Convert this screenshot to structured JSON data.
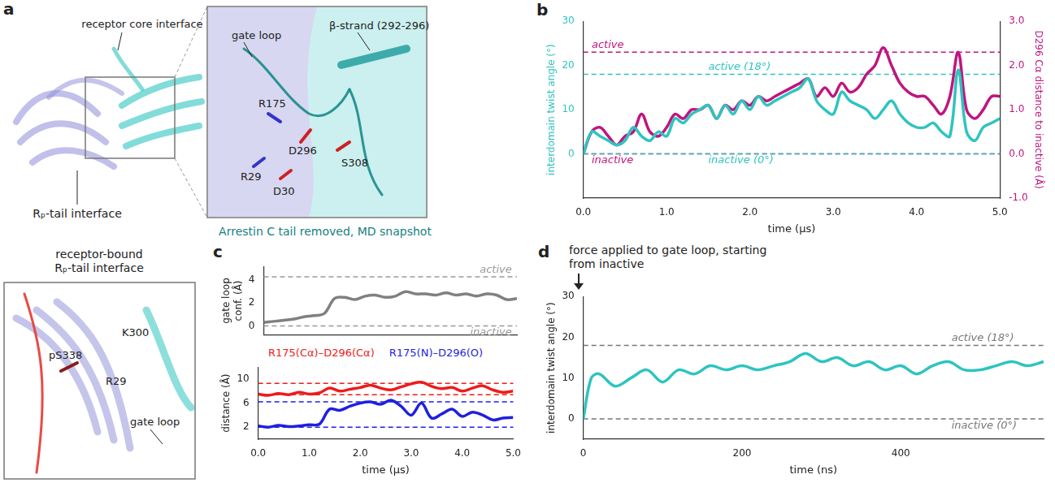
{
  "diagrams": {
    "a": {
      "letter": "a",
      "overview_labels": [
        "receptor core interface",
        "Rₚ-tail interface"
      ],
      "zoom_labels": [
        "gate loop",
        "β-strand (292-296)",
        "R175",
        "D296",
        "S308",
        "R29",
        "D30"
      ],
      "caption": "Arrestin C tail removed, MD snapshot"
    },
    "bound": {
      "title": "receptor-bound Rₚ-tail interface",
      "labels": [
        "pS338",
        "K300",
        "R29",
        "gate loop"
      ]
    }
  },
  "chart_data": [
    {
      "letter": "b",
      "type": "line",
      "grid": false,
      "xlabel": "time (μs)",
      "ylabel": "interdomain twist angle (°)",
      "y2label": "D296 Cα distance to inactive (Å)",
      "xlim": [
        0,
        5
      ],
      "xticks": [
        {
          "value": 0,
          "label": "0.0"
        },
        {
          "value": 1,
          "label": "1.0"
        },
        {
          "value": 2,
          "label": "2.0"
        },
        {
          "value": 3,
          "label": "3.0"
        },
        {
          "value": 4,
          "label": "4.0"
        },
        {
          "value": 5,
          "label": "5.0"
        }
      ],
      "ylim": [
        -10,
        30
      ],
      "yticks": [
        0,
        10,
        20,
        30
      ],
      "y2lim": [
        -1,
        3
      ],
      "y2ticks": [
        {
          "value": -1,
          "label": "-1.0"
        },
        {
          "value": 0,
          "label": "0.0"
        },
        {
          "value": 1,
          "label": "1.0"
        },
        {
          "value": 2,
          "label": "2.0"
        },
        {
          "value": 3,
          "label": "3.0"
        }
      ],
      "x": [
        0,
        0.1,
        0.2,
        0.3,
        0.4,
        0.5,
        0.6,
        0.7,
        0.8,
        0.9,
        1,
        1.1,
        1.2,
        1.3,
        1.4,
        1.5,
        1.6,
        1.7,
        1.8,
        1.9,
        2,
        2.1,
        2.2,
        2.3,
        2.4,
        2.5,
        2.6,
        2.7,
        2.8,
        2.9,
        3,
        3.1,
        3.2,
        3.3,
        3.4,
        3.5,
        3.6,
        3.7,
        3.8,
        3.9,
        4,
        4.1,
        4.2,
        4.3,
        4.4,
        4.5,
        4.6,
        4.7,
        4.8,
        4.9,
        5
      ],
      "series": [
        {
          "color": "#2ec4bf",
          "values": [
            0,
            5,
            4,
            3,
            2,
            3,
            6,
            4,
            3,
            5,
            4,
            8,
            7,
            9,
            10,
            11,
            8,
            11,
            9,
            12,
            10,
            13,
            11,
            12,
            13,
            14,
            15,
            17,
            12,
            10,
            9,
            14,
            12,
            11,
            10,
            8,
            10,
            12,
            9,
            7,
            6,
            6,
            7,
            5,
            4,
            19,
            5,
            3,
            6,
            7,
            8
          ]
        },
        {
          "color": "#c0157f",
          "axis": "y2",
          "values": [
            0,
            0.5,
            0.6,
            0.4,
            0.2,
            0.4,
            0.5,
            0.9,
            0.5,
            0.4,
            0.6,
            0.9,
            0.8,
            1.0,
            1.0,
            1.1,
            0.8,
            1.1,
            1.0,
            1.2,
            1.1,
            1.3,
            1.2,
            1.3,
            1.4,
            1.5,
            1.6,
            1.7,
            1.3,
            1.5,
            1.3,
            1.6,
            1.4,
            1.5,
            1.8,
            2.0,
            2.4,
            2.0,
            1.6,
            1.4,
            1.3,
            1.3,
            1.1,
            0.9,
            1.3,
            2.3,
            1.0,
            0.8,
            1.0,
            1.3,
            1.3
          ]
        }
      ],
      "annotations": [
        {
          "value": 2.3,
          "axis": "y2",
          "label": "active",
          "color": "#c0157f"
        },
        {
          "value": 18,
          "axis": "y",
          "label": "active (18°)",
          "color": "#2ec4bf"
        },
        {
          "value": 0,
          "axis": "y2",
          "label": "inactive",
          "color": "#c0157f"
        },
        {
          "value": 0,
          "axis": "y",
          "label": "inactive (0°)",
          "color": "#2ec4bf"
        }
      ]
    },
    {
      "letter": "c",
      "type": "line",
      "grid": false,
      "tick_labels": "y",
      "ylabel": "gate loop conf. (Å)",
      "xlim": [
        0,
        5
      ],
      "ylim": [
        -0.8,
        5.2
      ],
      "yticks": [
        0,
        2,
        4
      ],
      "x": [
        0,
        0.2,
        0.4,
        0.6,
        0.8,
        1,
        1.2,
        1.4,
        1.6,
        1.8,
        2,
        2.2,
        2.4,
        2.6,
        2.8,
        3,
        3.2,
        3.4,
        3.6,
        3.8,
        4,
        4.2,
        4.4,
        4.6,
        4.8,
        5
      ],
      "series": [
        {
          "color": "#808080",
          "values": [
            0.3,
            0.4,
            0.5,
            0.6,
            0.8,
            0.9,
            1.1,
            2.4,
            2.5,
            2.3,
            2.6,
            2.7,
            2.5,
            2.6,
            3.0,
            2.8,
            2.8,
            2.7,
            2.9,
            2.7,
            2.8,
            2.6,
            2.8,
            2.7,
            2.3,
            2.4
          ]
        }
      ],
      "annotations": [
        {
          "value": 4.3,
          "axis": "y",
          "label": "active",
          "color": "#999999"
        },
        {
          "value": 0,
          "axis": "y",
          "label": "inactive",
          "color": "#999999"
        }
      ]
    },
    {
      "type": "line",
      "grid": false,
      "xlabel": "time (μs)",
      "ylabel": "distance (Å)",
      "xlim": [
        0,
        5
      ],
      "xticks": [
        {
          "value": 0,
          "label": "0.0"
        },
        {
          "value": 1,
          "label": "1.0"
        },
        {
          "value": 2,
          "label": "2.0"
        },
        {
          "value": 3,
          "label": "3.0"
        },
        {
          "value": 4,
          "label": "4.0"
        },
        {
          "value": 5,
          "label": "5.0"
        }
      ],
      "ylim": [
        0,
        12
      ],
      "yticks": [
        2,
        6,
        10
      ],
      "x": [
        0,
        0.2,
        0.4,
        0.6,
        0.8,
        1,
        1.2,
        1.4,
        1.6,
        1.8,
        2,
        2.2,
        2.4,
        2.6,
        2.8,
        3,
        3.2,
        3.4,
        3.6,
        3.8,
        4,
        4.2,
        4.4,
        4.6,
        4.8,
        5
      ],
      "series": [
        {
          "name": "R175(Cα)–D296(Cα)",
          "color": "#ee1c1c",
          "values": [
            7.5,
            7.3,
            7.6,
            7.4,
            7.8,
            7.5,
            7.7,
            8.5,
            8.0,
            8.3,
            8.6,
            9.0,
            8.5,
            8.2,
            8.7,
            9.2,
            9.5,
            8.8,
            8.4,
            8.6,
            8.0,
            8.5,
            8.9,
            8.2,
            7.8,
            8.0
          ]
        },
        {
          "name": "R175(N)–D296(O)",
          "color": "#1f1fe0",
          "values": [
            2.2,
            2.0,
            2.3,
            2.1,
            2.2,
            2.4,
            2.5,
            5.0,
            4.8,
            5.5,
            6.0,
            6.2,
            5.8,
            6.5,
            5.5,
            4.0,
            6.0,
            3.5,
            4.2,
            5.0,
            3.8,
            4.5,
            4.0,
            3.2,
            3.5,
            3.6
          ]
        }
      ],
      "annotations": [
        {
          "value": 9.3,
          "axis": "y",
          "color": "#ee1c1c"
        },
        {
          "value": 7.4,
          "axis": "y",
          "color": "#ee1c1c"
        },
        {
          "value": 6.2,
          "axis": "y",
          "color": "#1f1fe0"
        },
        {
          "value": 2.0,
          "axis": "y",
          "color": "#1f1fe0"
        }
      ]
    },
    {
      "letter": "d",
      "type": "line",
      "grid": false,
      "title": "force applied to gate loop, starting from inactive",
      "xlabel": "time (ns)",
      "ylabel": "interdomain twist angle (°)",
      "xlim": [
        0,
        580
      ],
      "xticks": [
        0,
        200,
        400
      ],
      "ylim": [
        -5,
        30
      ],
      "yticks": [
        0,
        10,
        20,
        30
      ],
      "x": [
        0,
        10,
        20,
        40,
        60,
        80,
        100,
        120,
        140,
        160,
        180,
        200,
        220,
        240,
        260,
        280,
        300,
        320,
        340,
        360,
        380,
        400,
        420,
        440,
        460,
        480,
        500,
        520,
        540,
        560,
        580
      ],
      "series": [
        {
          "color": "#2ec4bf",
          "values": [
            0,
            10,
            11,
            8,
            10,
            12,
            9,
            12,
            11,
            13,
            12,
            13,
            12,
            13,
            14,
            16,
            14,
            15,
            13,
            14,
            12,
            13,
            11,
            13,
            14,
            12,
            12,
            13,
            14,
            13,
            14
          ]
        }
      ],
      "annotations": [
        {
          "value": 18,
          "axis": "y",
          "label": "active (18°)",
          "color": "#777777"
        },
        {
          "value": 0,
          "axis": "y",
          "label": "inactive (0°)",
          "color": "#777777"
        }
      ]
    }
  ]
}
